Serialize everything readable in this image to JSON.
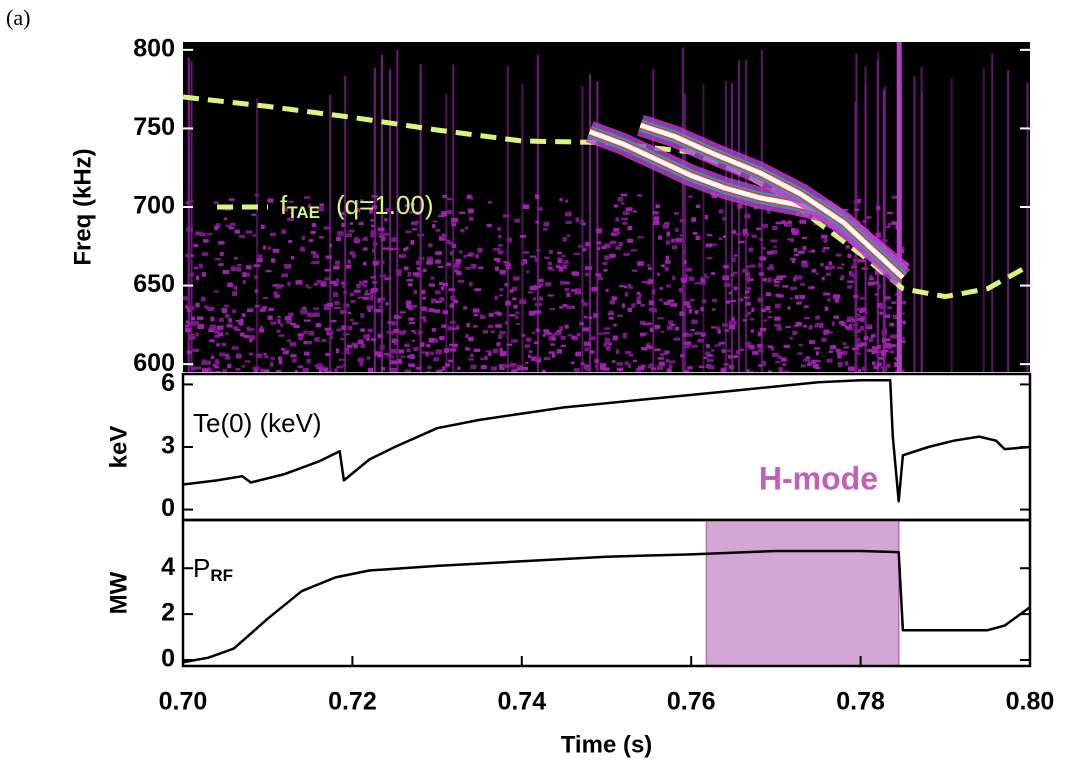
{
  "panel_label": "(a)",
  "chart_data": [
    {
      "type": "spectrogram",
      "ylabel": "Freq (kHz)",
      "xlim": [
        0.7,
        0.8
      ],
      "ylim": [
        595,
        805
      ],
      "yticks": [
        600,
        650,
        700,
        750,
        800
      ],
      "background": "#000000",
      "series": [
        {
          "name": "f",
          "name_subscript": "TAE",
          "name_suffix": "(q=1.00)",
          "color": "#d8f57c",
          "dashed": true,
          "x": [
            0.7,
            0.71,
            0.72,
            0.73,
            0.74,
            0.75,
            0.76,
            0.765,
            0.77,
            0.775,
            0.78,
            0.785,
            0.79,
            0.795,
            0.8
          ],
          "values": [
            770,
            764,
            757,
            749,
            742,
            741,
            735,
            724,
            710,
            690,
            670,
            648,
            643,
            648,
            663
          ]
        },
        {
          "color": "#ffffff",
          "x": [
            0.748,
            0.752,
            0.756,
            0.76,
            0.764,
            0.768,
            0.772,
            0.776,
            0.78,
            0.783,
            0.785
          ],
          "values": [
            748,
            740,
            730,
            720,
            712,
            706,
            702,
            697,
            680,
            667,
            658
          ]
        },
        {
          "color": "#ffffff",
          "x": [
            0.754,
            0.758,
            0.763,
            0.768,
            0.773,
            0.778,
            0.782,
            0.785
          ],
          "values": [
            752,
            745,
            733,
            722,
            708,
            690,
            670,
            655
          ]
        }
      ]
    },
    {
      "type": "line",
      "ylabel": "keV",
      "annotation": "H-mode",
      "annotation_color": "#c060b8",
      "xlim": [
        0.7,
        0.8
      ],
      "ylim": [
        -0.5,
        6.5
      ],
      "yticks": [
        0,
        3,
        6
      ],
      "series": [
        {
          "name": "Te(0) (keV)",
          "color": "#000000",
          "x": [
            0.7,
            0.704,
            0.707,
            0.708,
            0.712,
            0.716,
            0.7185,
            0.719,
            0.722,
            0.725,
            0.73,
            0.735,
            0.74,
            0.745,
            0.75,
            0.755,
            0.76,
            0.765,
            0.77,
            0.775,
            0.78,
            0.7835,
            0.7838,
            0.7845,
            0.785,
            0.788,
            0.791,
            0.794,
            0.796,
            0.797,
            0.8
          ],
          "values": [
            1.2,
            1.4,
            1.6,
            1.3,
            1.7,
            2.3,
            2.8,
            1.4,
            2.4,
            3.0,
            3.9,
            4.3,
            4.6,
            4.9,
            5.1,
            5.3,
            5.5,
            5.7,
            5.9,
            6.1,
            6.2,
            6.2,
            3.5,
            0.4,
            2.6,
            3.0,
            3.3,
            3.5,
            3.3,
            2.9,
            3.0
          ]
        }
      ]
    },
    {
      "type": "line",
      "xlabel": "Time (s)",
      "ylabel": "MW",
      "xlim": [
        0.7,
        0.8
      ],
      "ylim": [
        -0.26,
        6.1
      ],
      "yticks": [
        0,
        2,
        4
      ],
      "xticks": [
        {
          "value": 0.7,
          "label": "0.70"
        },
        {
          "value": 0.72,
          "label": "0.72"
        },
        {
          "value": 0.74,
          "label": "0.74"
        },
        {
          "value": 0.76,
          "label": "0.76"
        },
        {
          "value": 0.78,
          "label": "0.78"
        },
        {
          "value": 0.8,
          "label": "0.80"
        }
      ],
      "shade": {
        "x": [
          0.7618,
          0.7845
        ],
        "color": "#d4a6d3",
        "edge": "#b070b0"
      },
      "series": [
        {
          "name": "P",
          "name_subscript": "RF",
          "color": "#000000",
          "x": [
            0.7,
            0.703,
            0.706,
            0.71,
            0.714,
            0.718,
            0.722,
            0.73,
            0.74,
            0.75,
            0.76,
            0.77,
            0.78,
            0.7845,
            0.785,
            0.79,
            0.795,
            0.797,
            0.8
          ],
          "values": [
            -0.1,
            0.1,
            0.5,
            1.8,
            3.0,
            3.6,
            3.9,
            4.1,
            4.3,
            4.5,
            4.6,
            4.75,
            4.75,
            4.7,
            1.3,
            1.3,
            1.3,
            1.5,
            2.3
          ]
        }
      ]
    }
  ]
}
